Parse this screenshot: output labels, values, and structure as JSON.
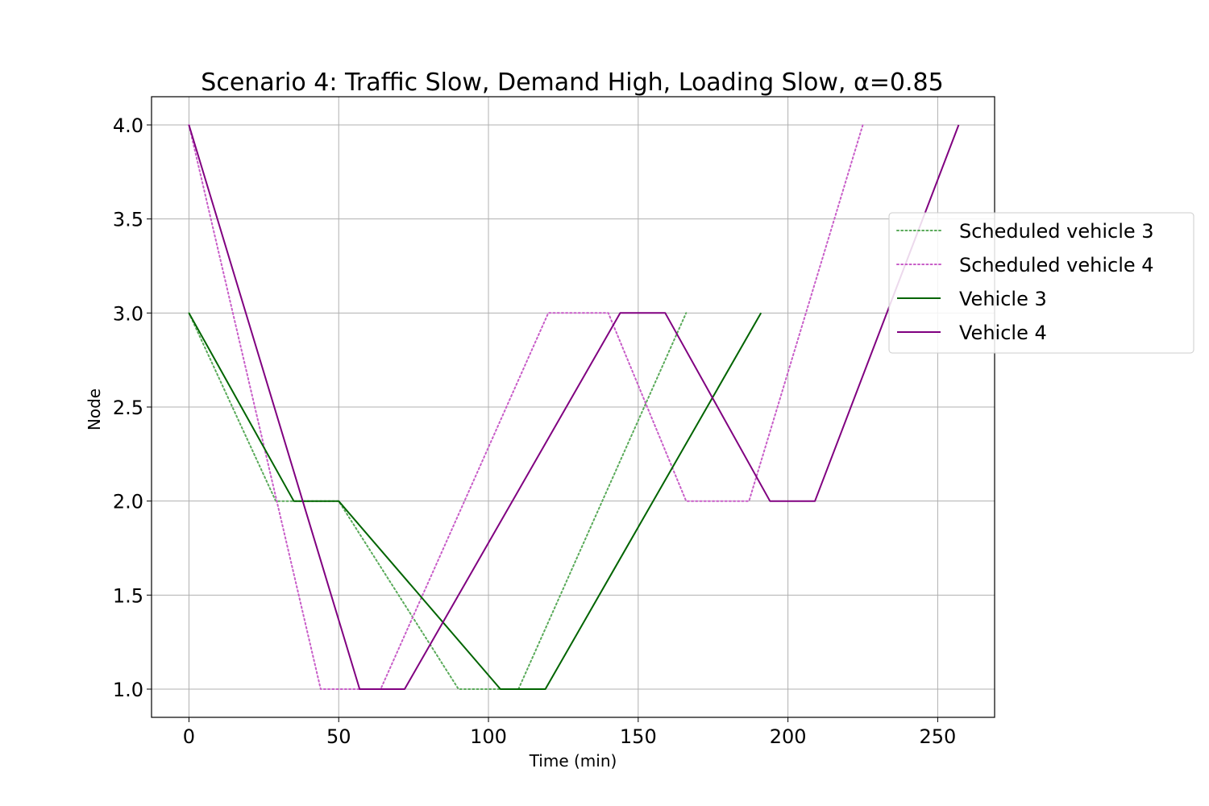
{
  "chart_data": {
    "type": "line",
    "title": "Scenario 4: Traffic Slow, Demand High, Loading Slow, α=0.85",
    "xlabel": "Time (min)",
    "ylabel": "Node",
    "xlim": [
      -12.5,
      269
    ],
    "ylim": [
      0.85,
      4.15
    ],
    "xticks": [
      0,
      50,
      100,
      150,
      200,
      250
    ],
    "xtick_labels": [
      "0",
      "50",
      "100",
      "150",
      "200",
      "250"
    ],
    "yticks": [
      1.0,
      1.5,
      2.0,
      2.5,
      3.0,
      3.5,
      4.0
    ],
    "ytick_labels": [
      "1.0",
      "1.5",
      "2.0",
      "2.5",
      "3.0",
      "3.5",
      "4.0"
    ],
    "grid": true,
    "legend_position": "right, outside upper",
    "series": [
      {
        "name": "Scheduled vehicle 3",
        "style": "dotted",
        "color": "#5aaa5a",
        "x": [
          0,
          29,
          50,
          90,
          110,
          166
        ],
        "y": [
          3,
          2,
          2,
          1,
          1,
          3
        ]
      },
      {
        "name": "Scheduled vehicle 4",
        "style": "dotted",
        "color": "#c85ec8",
        "x": [
          0,
          44,
          64,
          120,
          140,
          166,
          187,
          225
        ],
        "y": [
          4,
          1,
          1,
          3,
          3,
          2,
          2,
          4
        ]
      },
      {
        "name": "Vehicle 3",
        "style": "solid",
        "color": "#006400",
        "x": [
          0,
          35,
          50,
          104,
          119,
          191
        ],
        "y": [
          3,
          2,
          2,
          1,
          1,
          3
        ]
      },
      {
        "name": "Vehicle 4",
        "style": "solid",
        "color": "#800080",
        "x": [
          0,
          57,
          72,
          144,
          159,
          194,
          209,
          257
        ],
        "y": [
          4,
          1,
          1,
          3,
          3,
          2,
          2,
          4
        ]
      }
    ]
  }
}
